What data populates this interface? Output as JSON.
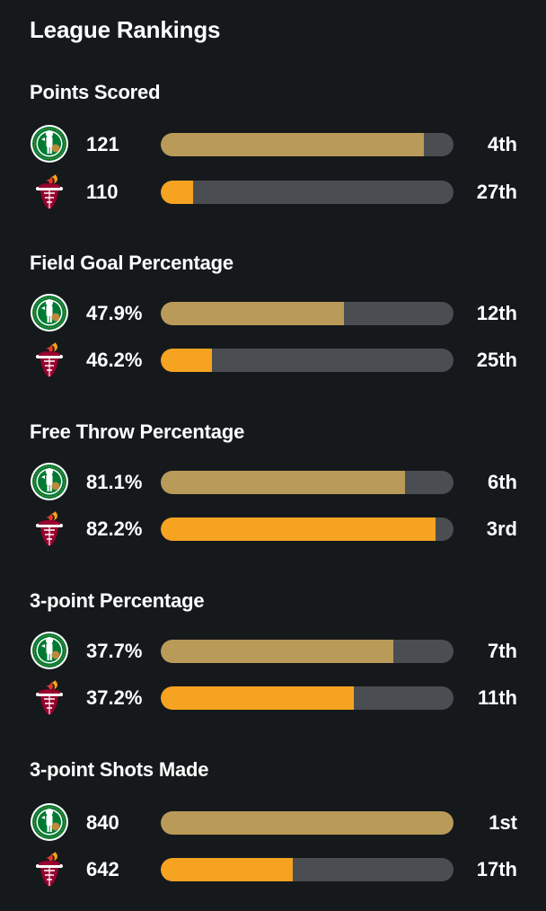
{
  "page": {
    "title": "League Rankings"
  },
  "colors": {
    "celtics_bar": "#b99a58",
    "heat_bar": "#f5a321",
    "track": "#4a4e52"
  },
  "teams": {
    "home": {
      "logo_icon": "celtics-logo-icon"
    },
    "away": {
      "logo_icon": "heat-logo-icon"
    }
  },
  "sections": [
    {
      "title": "Points Scored",
      "rows": [
        {
          "team": "celtics",
          "value": "121",
          "rank": "4th",
          "fill_pct": 90
        },
        {
          "team": "heat",
          "value": "110",
          "rank": "27th",
          "fill_pct": 11
        }
      ]
    },
    {
      "title": "Field Goal Percentage",
      "rows": [
        {
          "team": "celtics",
          "value": "47.9%",
          "rank": "12th",
          "fill_pct": 62.5
        },
        {
          "team": "heat",
          "value": "46.2%",
          "rank": "25th",
          "fill_pct": 17.5
        }
      ]
    },
    {
      "title": "Free Throw Percentage",
      "rows": [
        {
          "team": "celtics",
          "value": "81.1%",
          "rank": "6th",
          "fill_pct": 83.5
        },
        {
          "team": "heat",
          "value": "82.2%",
          "rank": "3rd",
          "fill_pct": 94
        }
      ]
    },
    {
      "title": "3-point Percentage",
      "rows": [
        {
          "team": "celtics",
          "value": "37.7%",
          "rank": "7th",
          "fill_pct": 79.5
        },
        {
          "team": "heat",
          "value": "37.2%",
          "rank": "11th",
          "fill_pct": 66
        }
      ]
    },
    {
      "title": "3-point Shots Made",
      "rows": [
        {
          "team": "celtics",
          "value": "840",
          "rank": "1st",
          "fill_pct": 100
        },
        {
          "team": "heat",
          "value": "642",
          "rank": "17th",
          "fill_pct": 45
        }
      ]
    }
  ]
}
